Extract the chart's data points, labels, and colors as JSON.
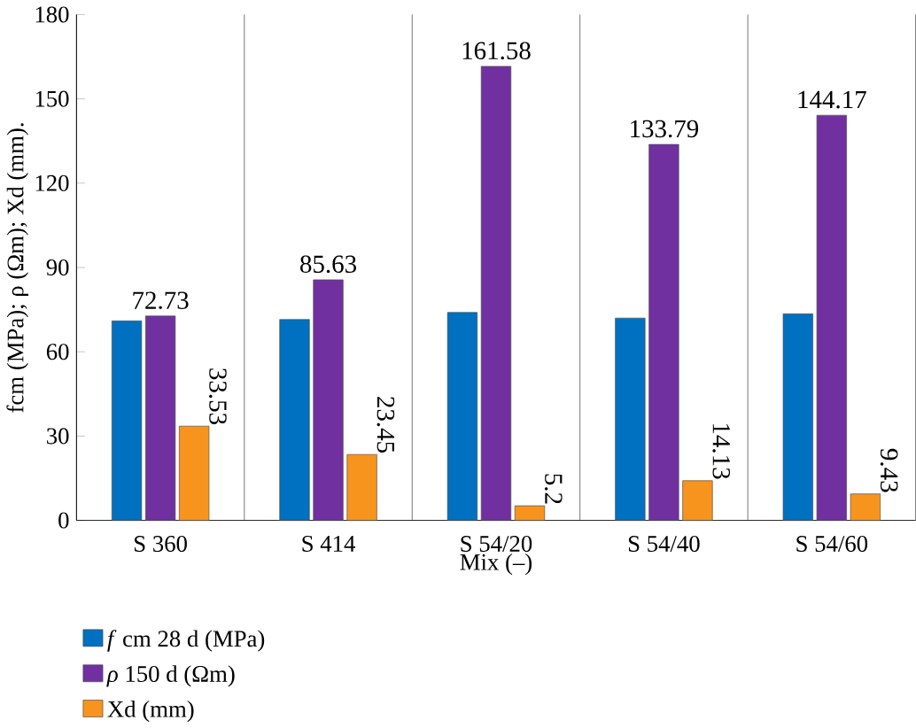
{
  "chart_data": {
    "type": "bar",
    "xlabel": "Mix (–)",
    "ylabel": "fcm (MPa); ρ (Ωm); Xd (mm).",
    "categories": [
      "S 360",
      "S 414",
      "S 54/20",
      "S 54/40",
      "S 54/60"
    ],
    "series": [
      {
        "name": "*f* cm 28 d (MPa)",
        "color": "#0070c0",
        "values": [
          71,
          71.5,
          74,
          72,
          73.5
        ]
      },
      {
        "name": "*ρ* 150 d (Ωm)",
        "color": "#7030a0",
        "values": [
          72.73,
          85.63,
          161.58,
          133.79,
          144.17
        ],
        "value_labels": [
          "72.73",
          "85.63",
          "161.58",
          "133.79",
          "144.17"
        ]
      },
      {
        "name": "Xd (mm)",
        "color": "#f7941d",
        "values": [
          33.53,
          23.45,
          5.2,
          14.13,
          9.43
        ],
        "value_labels": [
          "33.53",
          "23.45",
          "5.2",
          "14.13",
          "9.43"
        ]
      }
    ],
    "ylim": [
      0,
      180
    ],
    "yticks": [
      0,
      30,
      60,
      90,
      120,
      150,
      180
    ],
    "grid": "x",
    "legend": "bottom"
  }
}
